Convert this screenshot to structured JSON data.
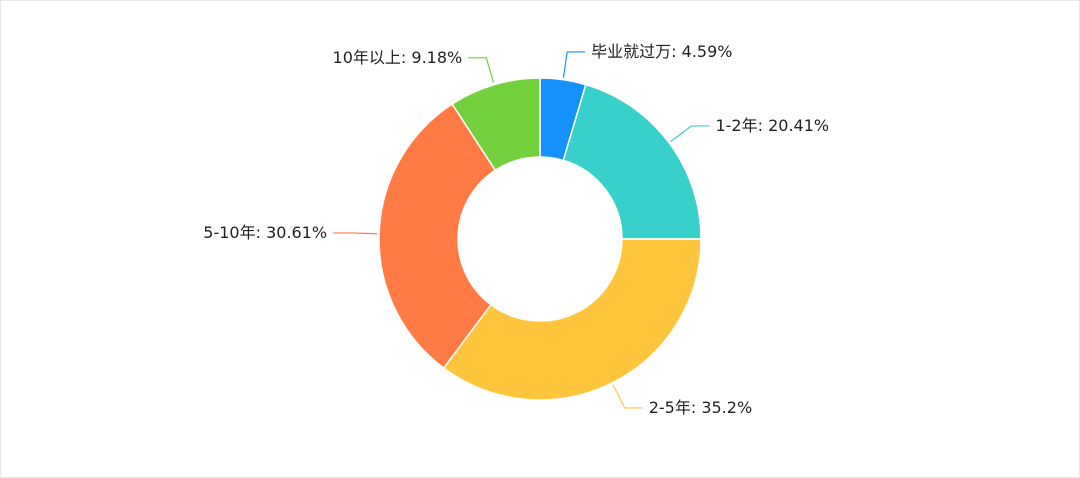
{
  "chart_data": {
    "type": "donut",
    "categories": [
      "毕业就过万",
      "1-2年",
      "2-5年",
      "5-10年",
      "10年以上"
    ],
    "values": [
      4.59,
      20.41,
      35.2,
      30.61,
      9.18
    ],
    "value_labels": [
      "4.59%",
      "20.41%",
      "35.2%",
      "30.61%",
      "9.18%"
    ],
    "label_separator": ": ",
    "colors": [
      "#1591fb",
      "#38d0cb",
      "#ffc53d",
      "#ff7a45",
      "#73d13d"
    ]
  }
}
